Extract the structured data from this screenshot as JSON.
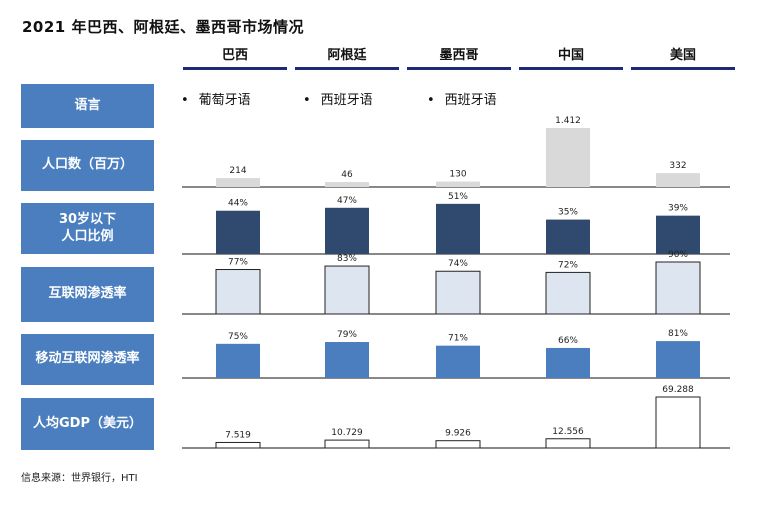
{
  "title": "2021 年巴西、阿根廷、墨西哥市场情况",
  "countries": [
    "巴西",
    "阿根廷",
    "墨西哥",
    "中国",
    "美国"
  ],
  "rows": {
    "language": {
      "label": "语言",
      "values": [
        "葡萄牙语",
        "西班牙语",
        "西班牙语"
      ]
    },
    "population": {
      "label": "人口数（百万）"
    },
    "under30": {
      "label_line1": "30岁以下",
      "label_line2": "人口比例"
    },
    "internet": {
      "label": "互联网渗透率"
    },
    "mobile": {
      "label": "移动互联网渗透率"
    },
    "gdp": {
      "label": "人均GDP（美元）"
    }
  },
  "colors": {
    "label_bg": "#4a7ebf",
    "header_line": "#1c2a78",
    "population_bar": "#d9d9d9",
    "under30_bar": "#2f4a6e",
    "internet_bar": "#dde5f0",
    "mobile_bar": "#4a7ebf",
    "gdp_bar": "#ffffff"
  },
  "source": "信息来源：世界银行，HTI",
  "chart_data": [
    {
      "type": "bar",
      "title": "人口数（百万）",
      "categories": [
        "巴西",
        "阿根廷",
        "墨西哥",
        "中国",
        "美国"
      ],
      "values": [
        214,
        46,
        130,
        1412,
        332
      ],
      "labels": [
        "214",
        "46",
        "130",
        "1.412",
        "332"
      ]
    },
    {
      "type": "bar",
      "title": "30岁以下人口比例",
      "categories": [
        "巴西",
        "阿根廷",
        "墨西哥",
        "中国",
        "美国"
      ],
      "values": [
        44,
        47,
        51,
        35,
        39
      ],
      "labels": [
        "44%",
        "47%",
        "51%",
        "35%",
        "39%"
      ]
    },
    {
      "type": "bar",
      "title": "互联网渗透率",
      "categories": [
        "巴西",
        "阿根廷",
        "墨西哥",
        "中国",
        "美国"
      ],
      "values": [
        77,
        83,
        74,
        72,
        90
      ],
      "labels": [
        "77%",
        "83%",
        "74%",
        "72%",
        "90%"
      ]
    },
    {
      "type": "bar",
      "title": "移动互联网渗透率",
      "categories": [
        "巴西",
        "阿根廷",
        "墨西哥",
        "中国",
        "美国"
      ],
      "values": [
        75,
        79,
        71,
        66,
        81
      ],
      "labels": [
        "75%",
        "79%",
        "71%",
        "66%",
        "81%"
      ]
    },
    {
      "type": "bar",
      "title": "人均GDP（美元）",
      "categories": [
        "巴西",
        "阿根廷",
        "墨西哥",
        "中国",
        "美国"
      ],
      "values": [
        7519,
        10729,
        9926,
        12556,
        69288
      ],
      "labels": [
        "7.519",
        "10.729",
        "9.926",
        "12.556",
        "69.288"
      ]
    }
  ]
}
